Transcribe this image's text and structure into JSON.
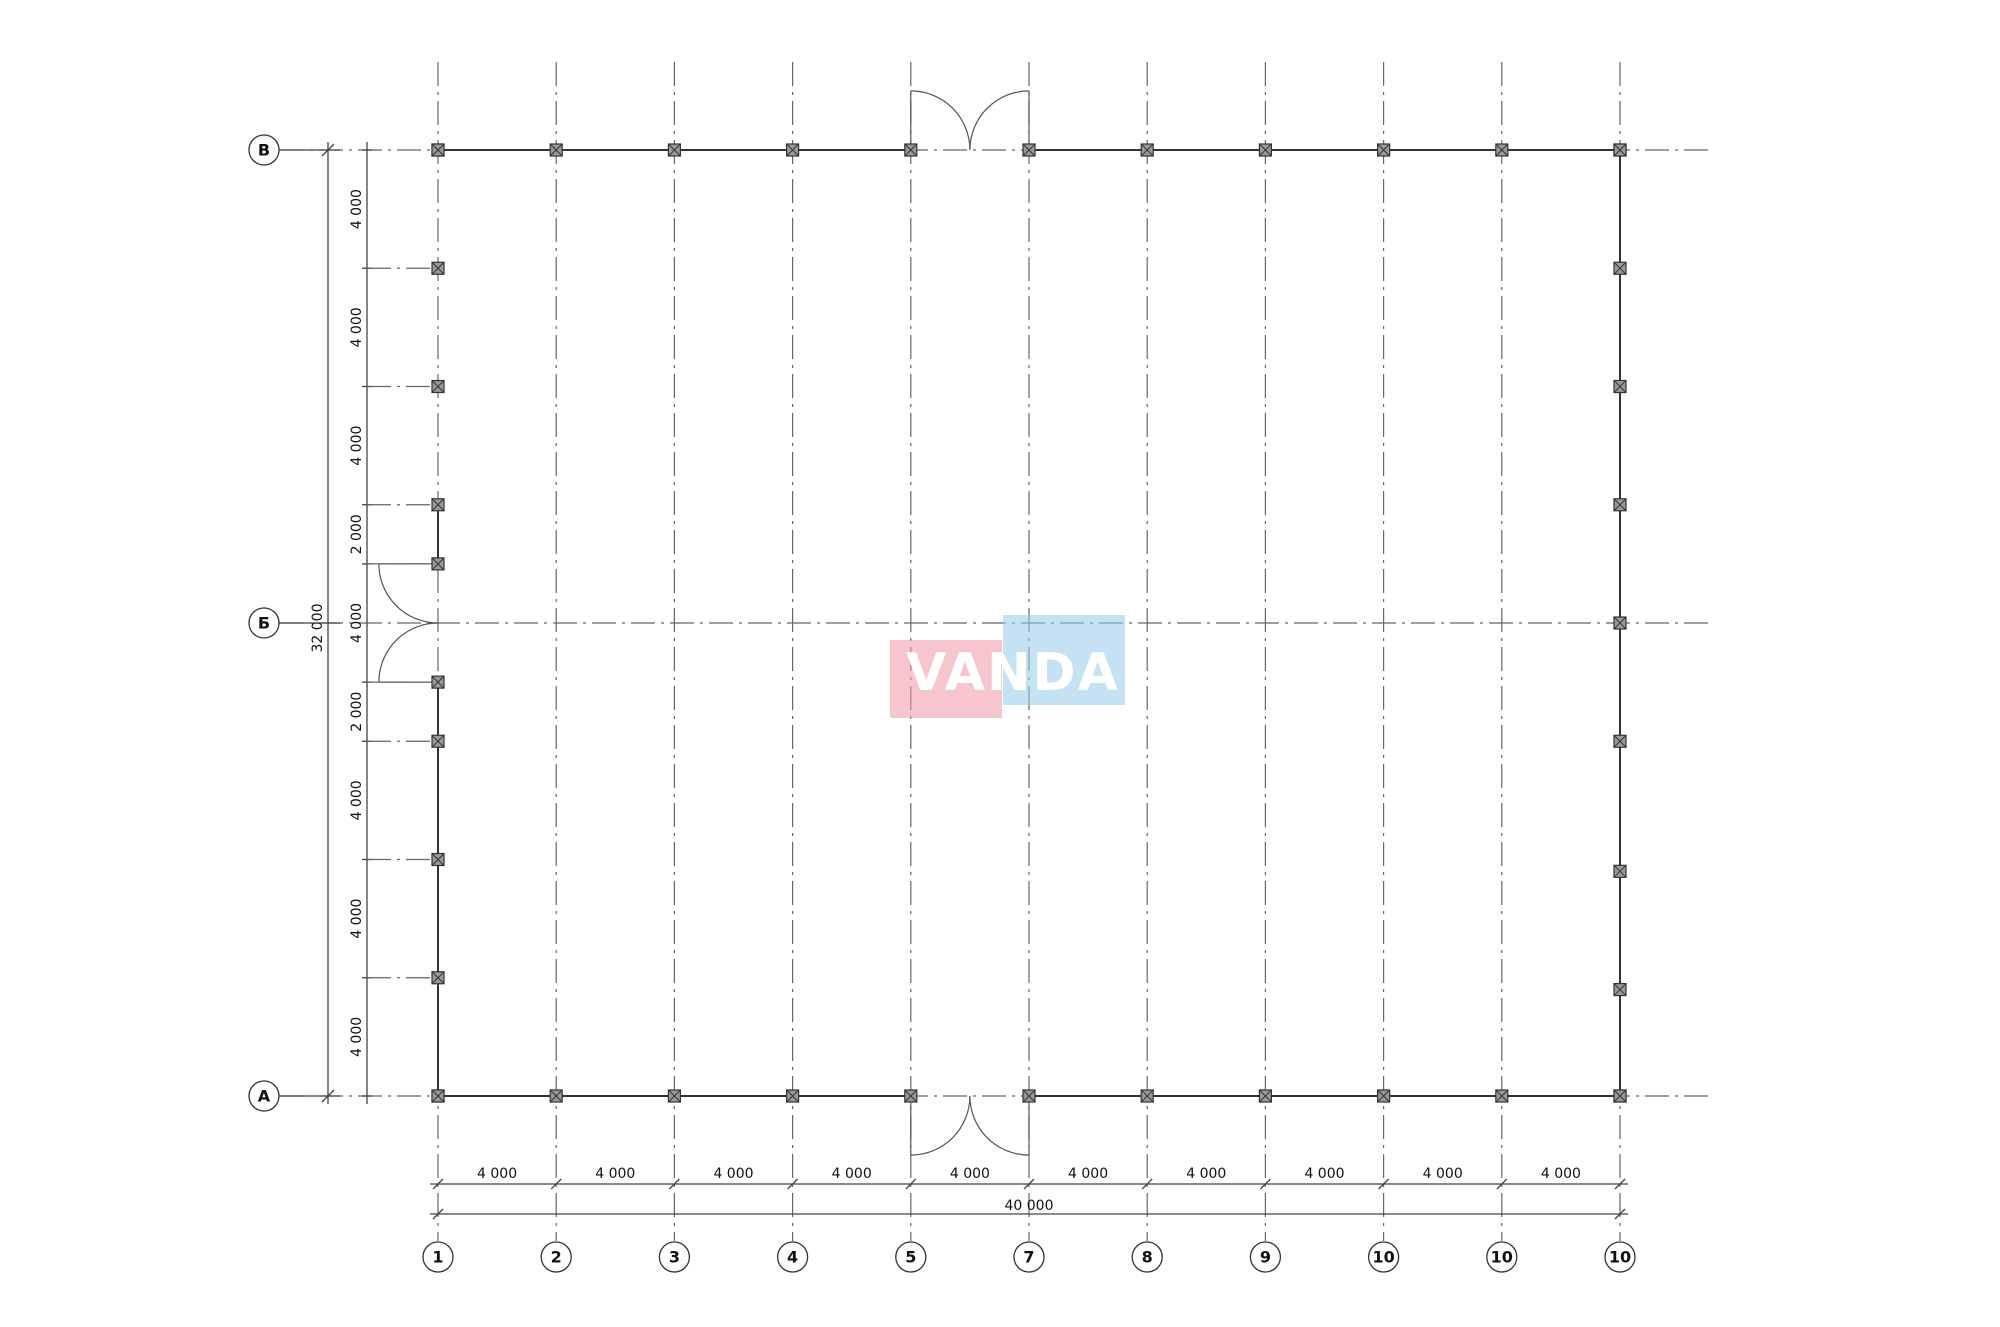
{
  "plan": {
    "column_labels": [
      "1",
      "2",
      "3",
      "4",
      "5",
      "7",
      "8",
      "9",
      "10",
      "10",
      "10"
    ],
    "row_labels": [
      "В",
      "Б",
      "А"
    ],
    "bay_dimensions": [
      "4 000",
      "4 000",
      "4 000",
      "4 000",
      "4 000",
      "4 000",
      "4 000",
      "4 000",
      "4 000",
      "4 000"
    ],
    "total_width": "40 000",
    "left_dimensions": [
      "4 000",
      "4 000",
      "4 000",
      "2 000",
      "4 000",
      "2 000",
      "4 000",
      "4 000",
      "4 000"
    ],
    "total_depth": "32 000",
    "left_wall_columns_mm": [
      0,
      4000,
      8000,
      12000,
      14000,
      18000,
      20000,
      24000,
      28000,
      32000
    ],
    "right_wall_columns_mm": [
      0,
      4000,
      8000,
      12000,
      16000,
      20000,
      24400,
      28400,
      32000
    ]
  },
  "watermark": {
    "text": "VANDA",
    "colors": {
      "pink": "#f096a5",
      "blue": "#96c8eb"
    }
  }
}
